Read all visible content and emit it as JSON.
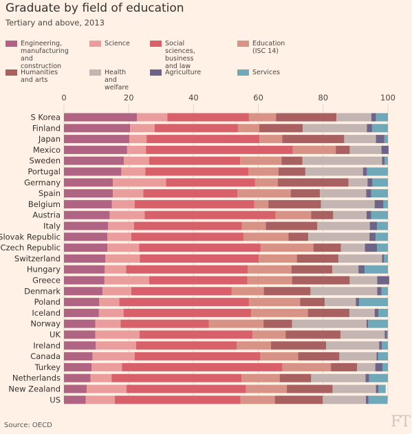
{
  "chart_data": {
    "type": "bar",
    "orientation": "horizontal",
    "stacked": true,
    "title": "Graduate by field of education",
    "subtitle": "Tertiary and above, 2013",
    "source": "Source: OECD",
    "xlim": [
      0,
      100
    ],
    "xticks": [
      "0",
      "20",
      "40",
      "60",
      "80",
      "100"
    ],
    "grid": true,
    "legend_position": "top",
    "categories": [
      "S Korea",
      "Finland",
      "Japan",
      "Mexico",
      "Sweden",
      "Portugal",
      "Germany",
      "Spain",
      "Belgium",
      "Austria",
      "Italy",
      "Slovak Republic",
      "Czech Republic",
      "Switzerland",
      "Hungary",
      "Greece",
      "Denmark",
      "Poland",
      "Iceland",
      "Norway",
      "UK",
      "Ireland",
      "Canada",
      "Turkey",
      "Netherlands",
      "New Zealand",
      "US"
    ],
    "series": [
      {
        "name": "Engineering,\nmanufacturing\nand construction",
        "color": "#b06383",
        "values": [
          22.5,
          20.4,
          20.2,
          19.5,
          18.5,
          17.7,
          15.1,
          15.1,
          14.8,
          14.1,
          13.6,
          13.4,
          13.4,
          12.8,
          12.6,
          12.5,
          11.9,
          10.9,
          10.8,
          9.7,
          9.7,
          9.8,
          8.8,
          8.5,
          8.2,
          7.0,
          6.7
        ]
      },
      {
        "name": "Science",
        "color": "#eb9c9c",
        "values": [
          9.4,
          7.6,
          5.3,
          5.8,
          7.8,
          7.4,
          16.4,
          9.4,
          7.0,
          10.8,
          8.0,
          7.4,
          9.8,
          10.6,
          6.6,
          13.8,
          8.9,
          6.2,
          7.6,
          7.8,
          13.6,
          12.5,
          13.0,
          9.4,
          6.5,
          12.3,
          9.0
        ]
      },
      {
        "name": "Social sciences,\nbusiness and law",
        "color": "#d8606a",
        "values": [
          25.2,
          25.7,
          34.8,
          45.3,
          28.1,
          31.8,
          27.5,
          29.0,
          36.9,
          40.4,
          33.3,
          34.6,
          37.5,
          36.7,
          37.5,
          30.3,
          30.9,
          40.0,
          39.4,
          27.2,
          34.9,
          31.0,
          38.8,
          49.5,
          40.1,
          36.9,
          38.8
        ]
      },
      {
        "name": "Education\n(ISC 14)",
        "color": "#d99286",
        "values": [
          8.4,
          6.6,
          7.1,
          13.3,
          12.8,
          9.3,
          7.0,
          16.5,
          4.4,
          11.0,
          7.4,
          13.9,
          16.3,
          11.8,
          13.5,
          13.8,
          10.0,
          15.8,
          17.5,
          16.9,
          10.2,
          10.6,
          11.7,
          15.0,
          11.8,
          12.6,
          10.6
        ]
      },
      {
        "name": "Humanities\nand arts",
        "color": "#a86060",
        "values": [
          18.6,
          13.4,
          19.1,
          4.3,
          6.4,
          8.3,
          21.8,
          9.0,
          16.2,
          6.8,
          15.9,
          6.1,
          8.5,
          12.8,
          12.6,
          17.8,
          14.4,
          7.6,
          12.8,
          8.8,
          17.0,
          17.0,
          12.7,
          8.1,
          9.7,
          14.1,
          14.8
        ]
      },
      {
        "name": "Health\nand welfare",
        "color": "#c3b5b2",
        "values": [
          10.8,
          19.8,
          9.8,
          9.8,
          24.6,
          17.8,
          5.9,
          14.3,
          16.6,
          10.3,
          16.2,
          18.9,
          7.4,
          13.5,
          8.1,
          8.5,
          20.6,
          9.6,
          7.8,
          23.0,
          13.6,
          16.4,
          11.5,
          5.6,
          16.8,
          13.4,
          13.3
        ]
      },
      {
        "name": "Agriculture",
        "color": "#6e6487",
        "values": [
          1.4,
          1.6,
          2.6,
          2.2,
          0.8,
          1.2,
          1.5,
          1.5,
          2.7,
          1.4,
          2.2,
          1.9,
          3.7,
          0.6,
          1.9,
          3.7,
          1.3,
          1.0,
          1.2,
          0.5,
          0.7,
          0.8,
          0.5,
          2.2,
          1.1,
          0.8,
          0.8
        ]
      },
      {
        "name": "Services",
        "color": "#6fa8b8",
        "values": [
          3.7,
          4.9,
          1.1,
          0.0,
          1.0,
          6.5,
          4.8,
          5.2,
          1.4,
          5.2,
          3.4,
          3.8,
          3.4,
          1.2,
          7.2,
          0.0,
          2.0,
          8.9,
          2.9,
          6.1,
          0.3,
          1.9,
          3.0,
          1.7,
          5.8,
          2.2,
          5.9
        ]
      }
    ]
  },
  "footer": {
    "source": "Source: OECD",
    "logo": "FT"
  }
}
